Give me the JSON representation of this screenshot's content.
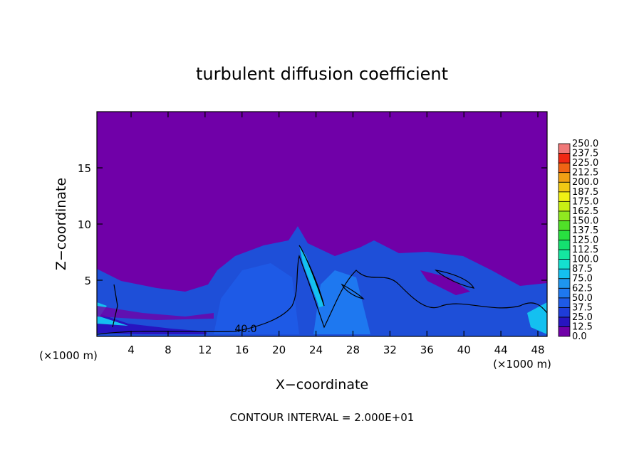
{
  "chart_data": {
    "type": "contour",
    "title": "turbulent diffusion coefficient",
    "x_label": "X−coordinate",
    "y_label": "Z−coordinate",
    "x_units": "(×1000 m)",
    "y_units": "(×1000 m)",
    "xlim": [
      0.3,
      49.0
    ],
    "xticks": [
      4,
      8,
      12,
      16,
      20,
      24,
      28,
      32,
      36,
      40,
      44,
      48
    ],
    "ylim": [
      0,
      20
    ],
    "yticks": [
      5,
      10,
      15
    ],
    "annotations": [
      "40.0"
    ],
    "footer": "CONTOUR INTERVAL = 2.000E+01",
    "colorbar": {
      "levels": [
        {
          "value": 0,
          "label": "0.0"
        },
        {
          "value": 12.5,
          "label": "12.5"
        },
        {
          "value": 25,
          "label": "25.0"
        },
        {
          "value": 37.5,
          "label": "37.5"
        },
        {
          "value": 50,
          "label": "50.0"
        },
        {
          "value": 62.5,
          "label": "62.5"
        },
        {
          "value": 75,
          "label": "75.0"
        },
        {
          "value": 87.5,
          "label": "87.5"
        },
        {
          "value": 100,
          "label": "100.0"
        },
        {
          "value": 112.5,
          "label": "112.5"
        },
        {
          "value": 125,
          "label": "125.0"
        },
        {
          "value": 137.5,
          "label": "137.5"
        },
        {
          "value": 150,
          "label": "150.0"
        },
        {
          "value": 162.5,
          "label": "162.5"
        },
        {
          "value": 175,
          "label": "175.0"
        },
        {
          "value": 187.5,
          "label": "187.5"
        },
        {
          "value": 200,
          "label": "200.0"
        },
        {
          "value": 212.5,
          "label": "212.5"
        },
        {
          "value": 225,
          "label": "225.0"
        },
        {
          "value": 237.5,
          "label": "237.5"
        },
        {
          "value": 250,
          "label": "250.0"
        }
      ],
      "colors": [
        "#7000a8",
        "#2814c0",
        "#1e3cd8",
        "#1e5ae6",
        "#1e78f0",
        "#1e96f0",
        "#14c0f0",
        "#14e0d0",
        "#14e6a0",
        "#14e070",
        "#28e040",
        "#50e028",
        "#90e820",
        "#c8f014",
        "#f0f014",
        "#f0c814",
        "#f0a014",
        "#f06414",
        "#f02814",
        "#f07878"
      ]
    }
  }
}
